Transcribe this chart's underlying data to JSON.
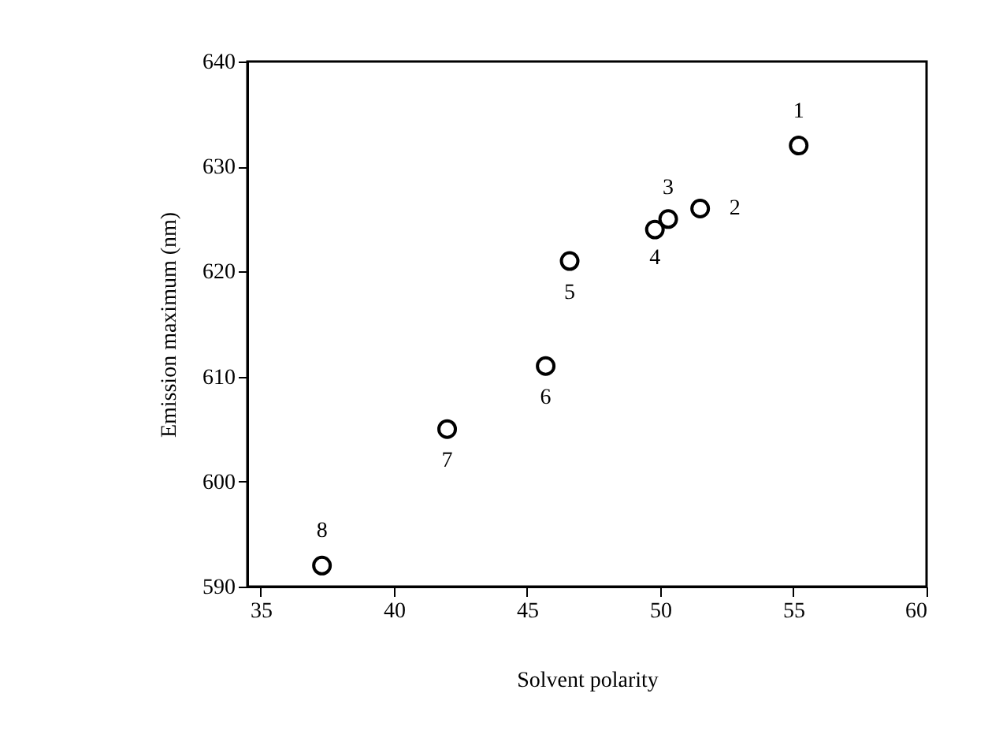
{
  "chart_data": {
    "type": "scatter",
    "xlabel": "Solvent polarity",
    "ylabel": "Emission maximum (nm)",
    "x": [
      55.2,
      51.5,
      50.3,
      49.8,
      46.6,
      45.7,
      42.0,
      37.3
    ],
    "series": [
      {
        "color": "#000000",
        "values": [
          632,
          626,
          625,
          624,
          621,
          611,
          605,
          592
        ]
      }
    ],
    "marker": "circle",
    "grid": false,
    "xlim": [
      34.5,
      60
    ],
    "xticks": [
      35,
      40,
      45,
      50,
      55,
      60
    ],
    "ylim": [
      590,
      640
    ],
    "yticks": [
      590,
      600,
      610,
      620,
      630,
      640
    ],
    "annotations": [
      {
        "text": "1",
        "x": 55.2,
        "y": 632
      },
      {
        "text": "2",
        "x": 51.5,
        "y": 626
      },
      {
        "text": "3",
        "x": 50.3,
        "y": 625
      },
      {
        "text": "4",
        "x": 49.8,
        "y": 624
      },
      {
        "text": "5",
        "x": 46.6,
        "y": 621
      },
      {
        "text": "6",
        "x": 45.7,
        "y": 611
      },
      {
        "text": "7",
        "x": 42.0,
        "y": 605
      },
      {
        "text": "8",
        "x": 37.3,
        "y": 592
      }
    ]
  }
}
